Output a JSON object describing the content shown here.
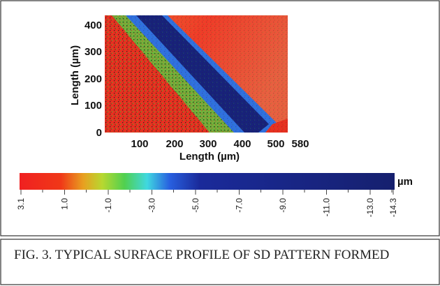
{
  "figure": {
    "y_axis_label": "Length (µm)",
    "x_axis_label": "Length (µm)",
    "yticks": [
      "0",
      "100",
      "200",
      "300",
      "400"
    ],
    "xticks": [
      "100",
      "200",
      "300",
      "400",
      "500",
      "580"
    ],
    "colorbar_unit": "µm",
    "colorbar_ticks": [
      "3.1",
      "1.0",
      "-1.0",
      "-3.0",
      "-5.0",
      "-7.0",
      "-9.0",
      "-11.0",
      "-13.0",
      "-14.3"
    ],
    "caption": "FIG. 3.  TYPICAL SURFACE PROFILE OF SD PATTERN FORMED"
  }
}
